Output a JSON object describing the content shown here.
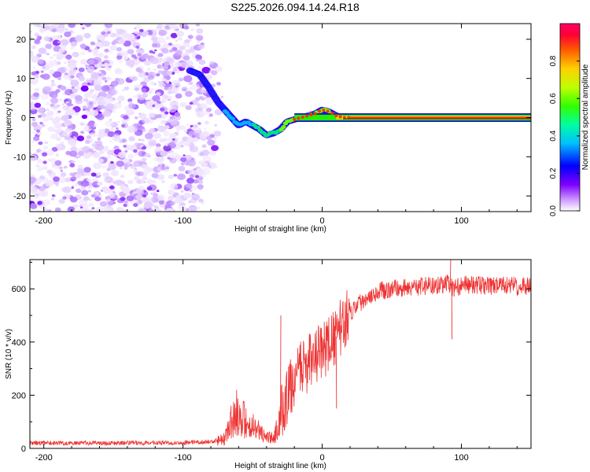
{
  "title": "S225.2026.094.14.24.R18",
  "chart_data": [
    {
      "type": "heatmap",
      "name": "spectrogram",
      "xlabel": "Height of straight line (km)",
      "ylabel": "Frequency (Hz)",
      "xlim": [
        -210,
        150
      ],
      "ylim": [
        -24,
        24
      ],
      "xticks": [
        -200,
        -100,
        0,
        100
      ],
      "yticks": [
        -20,
        -10,
        0,
        10,
        20
      ],
      "colorbar": {
        "label": "Normalized spectral amplitude",
        "range": [
          0,
          1
        ],
        "ticks": [
          0.0,
          0.2,
          0.4,
          0.6,
          0.8
        ]
      },
      "ridge": [
        [
          -95,
          12
        ],
        [
          -88,
          11
        ],
        [
          -82,
          8
        ],
        [
          -75,
          4
        ],
        [
          -70,
          2
        ],
        [
          -65,
          0
        ],
        [
          -60,
          -2
        ],
        [
          -55,
          -1
        ],
        [
          -50,
          -2
        ],
        [
          -45,
          -3
        ],
        [
          -40,
          -4.5
        ],
        [
          -35,
          -4
        ],
        [
          -30,
          -3
        ],
        [
          -25,
          -1
        ],
        [
          -20,
          -0.5
        ],
        [
          -15,
          0
        ],
        [
          -10,
          0.5
        ],
        [
          -5,
          1
        ],
        [
          0,
          2
        ],
        [
          5,
          1.5
        ],
        [
          10,
          0.5
        ],
        [
          15,
          0
        ],
        [
          20,
          0
        ],
        [
          50,
          0
        ],
        [
          85,
          0
        ],
        [
          88,
          1
        ],
        [
          92,
          0
        ],
        [
          150,
          0
        ]
      ]
    },
    {
      "type": "line",
      "name": "snr",
      "xlabel": "Height of straight line (km)",
      "ylabel": "SNR (10 * v/v)",
      "xlim": [
        -210,
        150
      ],
      "ylim": [
        0,
        710
      ],
      "xticks": [
        -200,
        -100,
        0,
        100
      ],
      "yticks": [
        0,
        200,
        400,
        600
      ],
      "color": "#ee3333",
      "series": [
        {
          "name": "SNR",
          "x": [
            -210,
            -150,
            -100,
            -80,
            -70,
            -65,
            -60,
            -55,
            -50,
            -45,
            -40,
            -35,
            -30,
            -25,
            -20,
            -15,
            -10,
            -5,
            0,
            5,
            10,
            15,
            20,
            25,
            30,
            35,
            40,
            50,
            60,
            70,
            80,
            90,
            95,
            100,
            110,
            120,
            130,
            140,
            150
          ],
          "values": [
            20,
            20,
            22,
            25,
            40,
            120,
            160,
            110,
            90,
            70,
            50,
            40,
            120,
            200,
            260,
            300,
            320,
            340,
            370,
            390,
            420,
            470,
            510,
            540,
            560,
            580,
            590,
            600,
            605,
            610,
            610,
            620,
            600,
            615,
            615,
            610,
            612,
            610,
            612
          ]
        }
      ]
    }
  ]
}
